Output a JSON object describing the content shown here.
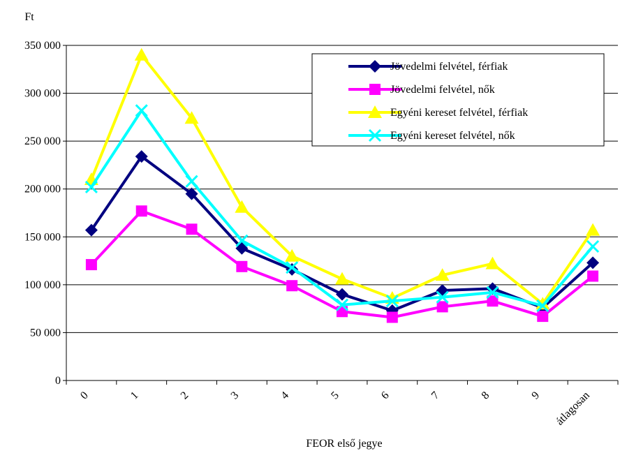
{
  "chart_data": {
    "type": "line",
    "ylabel": "Ft",
    "xlabel": "FEOR első jegye",
    "categories": [
      "0",
      "1",
      "2",
      "3",
      "4",
      "5",
      "6",
      "7",
      "8",
      "9",
      "átlagosan"
    ],
    "ylim": [
      0,
      350000
    ],
    "yticks": [
      0,
      50000,
      100000,
      150000,
      200000,
      250000,
      300000,
      350000
    ],
    "ytick_labels": [
      "0",
      "50 000",
      "100 000",
      "150 000",
      "200 000",
      "250 000",
      "300 000",
      "350 000"
    ],
    "grid": true,
    "legend_position": "top-right",
    "series": [
      {
        "name": "Jövedelmi felvétel, férfiak",
        "color": "#000080",
        "marker": "diamond",
        "values": [
          157000,
          234000,
          195000,
          138000,
          116000,
          90000,
          73000,
          94000,
          96000,
          76000,
          123000
        ]
      },
      {
        "name": "Jövedelmi felvétel, nők",
        "color": "#FF00FF",
        "marker": "square",
        "values": [
          121000,
          177000,
          158000,
          119000,
          99000,
          72000,
          66000,
          77000,
          83000,
          67000,
          109000
        ]
      },
      {
        "name": "Egyéni kereset felvétel, férfiak",
        "color": "#FFFF00",
        "marker": "triangle",
        "values": [
          210000,
          340000,
          274000,
          181000,
          130000,
          106000,
          86000,
          110000,
          122000,
          80000,
          157000
        ]
      },
      {
        "name": "Egyéni kereset felvétel, nők",
        "color": "#00FFFF",
        "marker": "x",
        "values": [
          202000,
          282000,
          208000,
          146000,
          118000,
          79000,
          83000,
          87000,
          92000,
          78000,
          140000
        ]
      }
    ]
  }
}
